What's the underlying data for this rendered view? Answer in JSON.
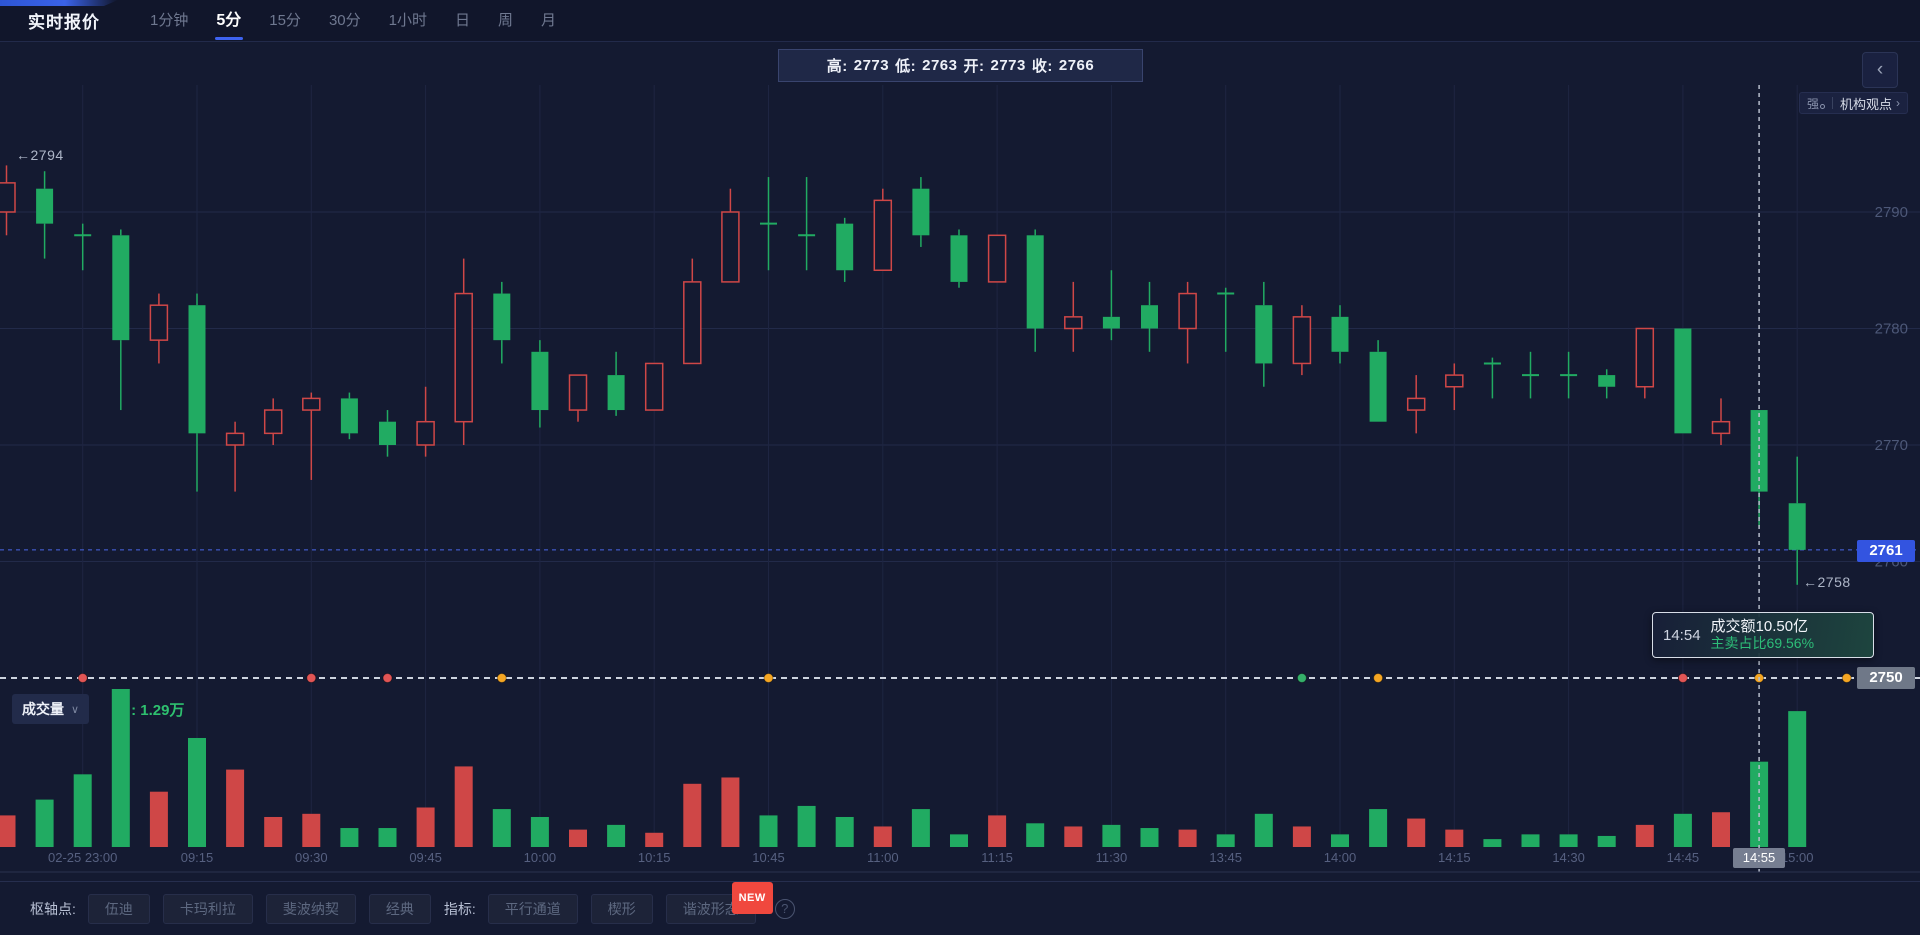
{
  "header": {
    "title": "实时报价",
    "timeframes": [
      "1分钟",
      "5分",
      "15分",
      "30分",
      "1小时",
      "日",
      "周",
      "月"
    ],
    "active_timeframe": "5分"
  },
  "ohlc_bar": {
    "high_label": "高:",
    "high": "2773",
    "low_label": "低:",
    "low": "2763",
    "open_label": "开:",
    "open": "2773",
    "close_label": "收:",
    "close": "2766"
  },
  "top_right": {
    "collapse_icon": "‹",
    "strength_badge": "强",
    "insight_link": "机构观点",
    "chevron": "›"
  },
  "annotations": {
    "session_high_label": "←2794",
    "session_low_label": "←2758"
  },
  "crosshair": {
    "time_badge": "14:55"
  },
  "tooltip": {
    "time": "14:54",
    "line1": "成交额10.50亿",
    "line2": "主卖占比69.56%"
  },
  "volume_header": {
    "label": "成交量",
    "dropdown_icon": "∨",
    "value": ": 1.29万"
  },
  "price_badges": {
    "current_price": "2761",
    "baseline": "2750"
  },
  "bottom_toolbar": {
    "groups": [
      {
        "label": "枢轴点:",
        "buttons": [
          "伍迪",
          "卡玛利拉",
          "斐波纳契",
          "经典"
        ]
      },
      {
        "label": "指标:",
        "buttons": [
          "平行通道",
          "楔形",
          "谐波形态"
        ]
      }
    ],
    "new_badge": "NEW",
    "new_badge_on": "谐波形态",
    "help_icon": "?"
  },
  "colors": {
    "up_red": "#cf4747",
    "down_green": "#21ab62",
    "accent_blue": "#3354e0",
    "badge_gray": "#6f7888",
    "tooltip_green": "#2dbd78",
    "new_badge_red": "#f0483e"
  },
  "chart_data": {
    "type": "candlestick+volume",
    "convention": "CN: red hollow = up, green solid = down",
    "price_ylim": [
      2748,
      2796
    ],
    "y_ticks": [
      2790,
      2780,
      2770,
      2760
    ],
    "baseline_price": 2750,
    "current_price": 2761,
    "session_high": 2794,
    "session_low": 2758,
    "hovered_candle": {
      "index": 46,
      "time": "14:55",
      "open": 2773,
      "high": 2773,
      "low": 2763,
      "close": 2766
    },
    "volume_unit": "relative_percent_of_max",
    "candles_ohlcv": [
      [
        2790,
        2794,
        2788,
        2792.5,
        20
      ],
      [
        2792,
        2793.5,
        2786,
        2789,
        30
      ],
      [
        2788,
        2789,
        2785,
        2788,
        46
      ],
      [
        2788,
        2788.5,
        2773,
        2779,
        100
      ],
      [
        2779,
        2783,
        2777,
        2782,
        35
      ],
      [
        2782,
        2783,
        2766,
        2771,
        69
      ],
      [
        2770,
        2772,
        2766,
        2771,
        49
      ],
      [
        2771,
        2774,
        2770,
        2773,
        19
      ],
      [
        2773,
        2774.5,
        2767,
        2774,
        21
      ],
      [
        2774,
        2774.5,
        2770.5,
        2771,
        12
      ],
      [
        2772,
        2773,
        2769,
        2770,
        12
      ],
      [
        2770,
        2775,
        2769,
        2772,
        25
      ],
      [
        2772,
        2786,
        2770,
        2783,
        51
      ],
      [
        2783,
        2784,
        2777,
        2779,
        24
      ],
      [
        2778,
        2779,
        2771.5,
        2773,
        19
      ],
      [
        2773,
        2776,
        2772,
        2776,
        11
      ],
      [
        2776,
        2778,
        2772.5,
        2773,
        14
      ],
      [
        2773,
        2777,
        2773,
        2777,
        9
      ],
      [
        2777,
        2786,
        2777,
        2784,
        40
      ],
      [
        2784,
        2792,
        2784,
        2790,
        44
      ],
      [
        2789,
        2793,
        2785,
        2789,
        20
      ],
      [
        2788,
        2793,
        2785,
        2788,
        26
      ],
      [
        2789,
        2789.5,
        2784,
        2785,
        19
      ],
      [
        2785,
        2792,
        2785,
        2791,
        13
      ],
      [
        2792,
        2793,
        2787,
        2788,
        24
      ],
      [
        2788,
        2788.5,
        2783.5,
        2784,
        8
      ],
      [
        2784,
        2788,
        2784,
        2788,
        20
      ],
      [
        2788,
        2788.5,
        2778,
        2780,
        15
      ],
      [
        2780,
        2784,
        2778,
        2781,
        13
      ],
      [
        2781,
        2785,
        2779,
        2780,
        14
      ],
      [
        2782,
        2784,
        2778,
        2780,
        12
      ],
      [
        2780,
        2784,
        2777,
        2783,
        11
      ],
      [
        2783,
        2783.5,
        2778,
        2783,
        8
      ],
      [
        2782,
        2784,
        2775,
        2777,
        21
      ],
      [
        2777,
        2782,
        2776,
        2781,
        13
      ],
      [
        2781,
        2782,
        2777,
        2778,
        8
      ],
      [
        2778,
        2779,
        2772,
        2772,
        24
      ],
      [
        2773,
        2776,
        2771,
        2774,
        18
      ],
      [
        2775,
        2777,
        2773,
        2776,
        11
      ],
      [
        2777,
        2777.5,
        2774,
        2777,
        5
      ],
      [
        2776,
        2778,
        2774,
        2776,
        8
      ],
      [
        2776,
        2778,
        2774,
        2776,
        8
      ],
      [
        2776,
        2776.5,
        2774,
        2775,
        7
      ],
      [
        2775,
        2780,
        2774,
        2780,
        14
      ],
      [
        2780,
        2780,
        2771,
        2771,
        21
      ],
      [
        2771,
        2774,
        2770,
        2772,
        22
      ],
      [
        2773,
        2773,
        2763,
        2766,
        54
      ],
      [
        2765,
        2769,
        2758,
        2761,
        86
      ]
    ],
    "time_ticks": [
      {
        "i": 2,
        "label": "02-25 23:00"
      },
      {
        "i": 5,
        "label": "09:15"
      },
      {
        "i": 8,
        "label": "09:30"
      },
      {
        "i": 11,
        "label": "09:45"
      },
      {
        "i": 14,
        "label": "10:00"
      },
      {
        "i": 17,
        "label": "10:15"
      },
      {
        "i": 20,
        "label": "10:45"
      },
      {
        "i": 23,
        "label": "11:00"
      },
      {
        "i": 26,
        "label": "11:15"
      },
      {
        "i": 29,
        "label": "11:30"
      },
      {
        "i": 32,
        "label": "13:45"
      },
      {
        "i": 35,
        "label": "14:00"
      },
      {
        "i": 38,
        "label": "14:15"
      },
      {
        "i": 41,
        "label": "14:30"
      },
      {
        "i": 44,
        "label": "14:45"
      },
      {
        "i": 47,
        "label": "15:00"
      }
    ],
    "event_markers": [
      {
        "i": 2,
        "color": "#e25555"
      },
      {
        "i": 8,
        "color": "#e25555"
      },
      {
        "i": 10,
        "color": "#e25555"
      },
      {
        "i": 13,
        "color": "#f5a623"
      },
      {
        "i": 20,
        "color": "#f5a623"
      },
      {
        "i": 34,
        "color": "#35b06a"
      },
      {
        "i": 36,
        "color": "#f5a623"
      },
      {
        "i": 44,
        "color": "#e25555"
      },
      {
        "i": 46,
        "color": "#f5a623"
      },
      {
        "i": 48.3,
        "color": "#f5a623"
      }
    ],
    "legend_position": "none",
    "grid": true
  }
}
